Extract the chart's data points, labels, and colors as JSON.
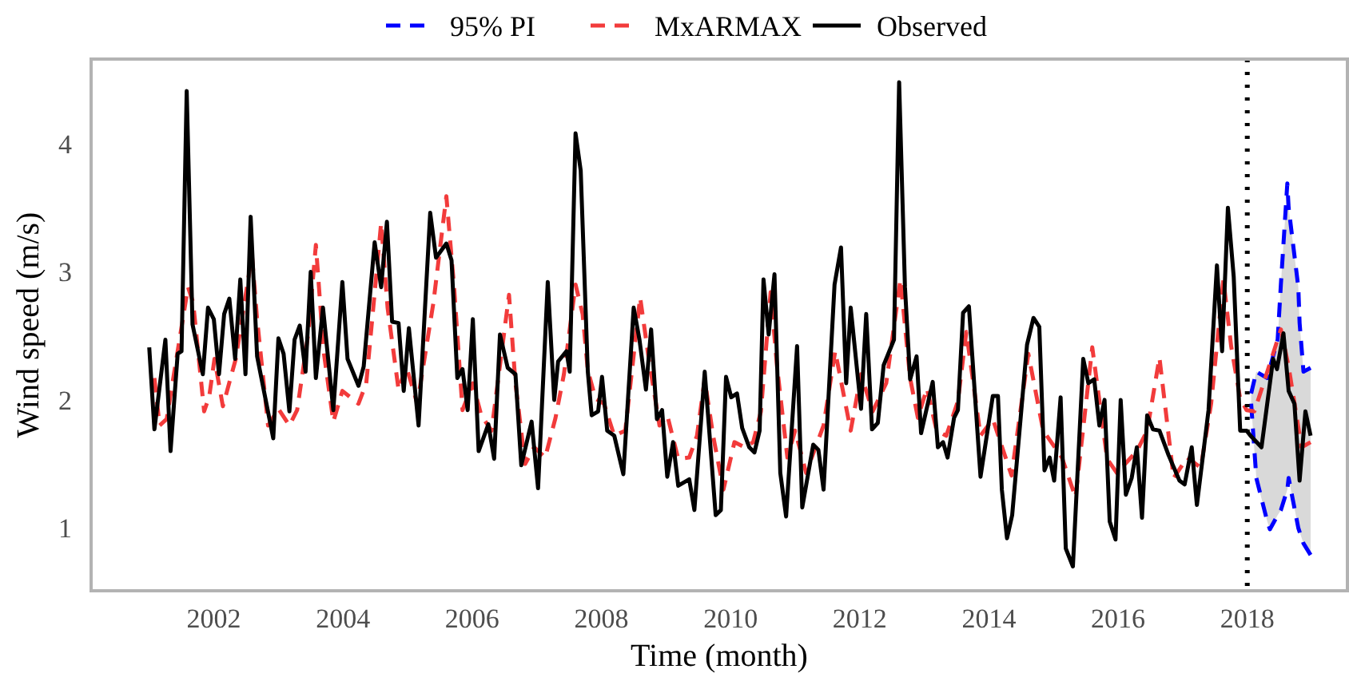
{
  "chart_data": {
    "type": "line",
    "xlabel": "Time (month)",
    "ylabel": "Wind speed (m/s)",
    "xlim": [
      2000.1,
      2019.55
    ],
    "ylim": [
      0.51,
      4.66
    ],
    "xticks": [
      2002,
      2004,
      2006,
      2008,
      2010,
      2012,
      2014,
      2016,
      2018
    ],
    "yticks": [
      1,
      2,
      3,
      4
    ],
    "legend": "top",
    "ref_lines": [
      {
        "axis": "x",
        "value": 2018,
        "color": "#000000",
        "line_style": "dotted"
      }
    ],
    "series": [
      {
        "name": "95% PI",
        "color": "#0000ff",
        "line_style": "dashed",
        "x": [
          2018.06,
          2018.14,
          2018.31,
          2018.35,
          2018.47,
          2018.52,
          2018.62,
          2018.64,
          2018.79,
          2018.81,
          2018.87,
          2018.98
        ],
        "values": [
          2.05,
          2.22,
          2.17,
          2.25,
          2.47,
          2.9,
          3.69,
          3.5,
          2.88,
          2.6,
          2.22,
          2.25
        ],
        "lower": [
          1.97,
          1.39,
          1.05,
          0.99,
          1.1,
          1.14,
          1.3,
          1.39,
          1.0,
          0.97,
          0.88,
          0.79
        ],
        "upper": [
          2.05,
          2.22,
          2.17,
          2.25,
          2.47,
          2.9,
          3.69,
          3.5,
          2.88,
          2.6,
          2.22,
          2.25
        ]
      },
      {
        "color": "#0000ff",
        "line_style": "dashed",
        "x": [
          2018.06,
          2018.14,
          2018.31,
          2018.35,
          2018.47,
          2018.52,
          2018.62,
          2018.64,
          2018.79,
          2018.81,
          2018.87,
          2018.98
        ],
        "values": [
          1.97,
          1.39,
          1.05,
          0.99,
          1.1,
          1.14,
          1.3,
          1.39,
          1.0,
          0.97,
          0.88,
          0.79
        ]
      },
      {
        "name": "MxARMAX",
        "color": "#f23b3b",
        "line_style": "dashed",
        "x": [
          2001.08,
          2001.16,
          2001.27,
          2001.6,
          2001.68,
          2001.85,
          2001.93,
          2002.01,
          2002.14,
          2002.34,
          2002.59,
          2002.67,
          2002.84,
          2003.0,
          2003.17,
          2003.29,
          2003.46,
          2003.58,
          2003.7,
          2003.85,
          2003.99,
          2004.24,
          2004.36,
          2004.59,
          2004.69,
          2004.86,
          2004.98,
          2005.15,
          2005.4,
          2005.6,
          2005.72,
          2005.85,
          2006.01,
          2006.14,
          2006.3,
          2006.57,
          2006.67,
          2006.82,
          2006.96,
          2007.13,
          2007.29,
          2007.42,
          2007.6,
          2007.71,
          2007.79,
          2007.91,
          2008.04,
          2008.2,
          2008.37,
          2008.6,
          2008.74,
          2008.9,
          2009.02,
          2009.19,
          2009.36,
          2009.48,
          2009.6,
          2009.73,
          2009.89,
          2010.06,
          2010.22,
          2010.35,
          2010.47,
          2010.62,
          2010.72,
          2010.88,
          2011.0,
          2011.17,
          2011.44,
          2011.62,
          2011.86,
          2012.02,
          2012.2,
          2012.41,
          2012.63,
          2012.78,
          2012.9,
          2013.04,
          2013.19,
          2013.34,
          2013.52,
          2013.65,
          2013.87,
          2014.06,
          2014.35,
          2014.61,
          2014.84,
          2015.13,
          2015.34,
          2015.6,
          2015.83,
          2015.98,
          2016.29,
          2016.45,
          2016.64,
          2016.86,
          2017.07,
          2017.28,
          2017.44,
          2017.63,
          2017.75,
          2017.89,
          2017.99,
          2018.11,
          2018.31,
          2018.52,
          2018.64,
          2018.84,
          2018.98
        ],
        "values": [
          2.17,
          1.8,
          1.85,
          2.88,
          2.76,
          1.91,
          2.03,
          2.32,
          1.95,
          2.32,
          3.13,
          2.63,
          1.8,
          1.93,
          1.8,
          1.92,
          2.51,
          3.21,
          2.38,
          1.83,
          2.07,
          1.97,
          2.13,
          3.38,
          2.72,
          2.08,
          2.26,
          1.97,
          2.76,
          3.59,
          2.88,
          1.92,
          2.13,
          1.88,
          1.76,
          2.82,
          2.13,
          1.5,
          1.63,
          1.55,
          1.86,
          2.2,
          2.9,
          2.67,
          2.23,
          2.01,
          1.97,
          1.72,
          1.76,
          2.8,
          2.3,
          1.8,
          1.88,
          1.54,
          1.55,
          1.72,
          2.16,
          1.72,
          1.3,
          1.67,
          1.63,
          1.67,
          1.91,
          2.84,
          2.26,
          1.55,
          1.76,
          1.43,
          1.8,
          2.38,
          1.76,
          2.2,
          1.91,
          2.13,
          2.94,
          2.17,
          1.86,
          2.09,
          1.76,
          1.72,
          1.99,
          2.53,
          1.72,
          1.85,
          1.41,
          2.36,
          1.76,
          1.55,
          1.24,
          2.41,
          1.54,
          1.43,
          1.6,
          1.76,
          2.33,
          1.39,
          1.55,
          1.47,
          1.97,
          2.94,
          2.42,
          2.01,
          1.92,
          1.91,
          2.22,
          2.55,
          2.26,
          1.63,
          1.67
        ]
      },
      {
        "name": "Observed",
        "color": "#000000",
        "line_style": "solid",
        "x": [
          2001.0,
          2001.08,
          2001.25,
          2001.33,
          2001.44,
          2001.5,
          2001.58,
          2001.67,
          2001.83,
          2001.91,
          2002.0,
          2002.08,
          2002.16,
          2002.24,
          2002.33,
          2002.41,
          2002.49,
          2002.57,
          2002.67,
          2002.92,
          2003.0,
          2003.08,
          2003.17,
          2003.25,
          2003.33,
          2003.42,
          2003.5,
          2003.58,
          2003.69,
          2003.85,
          2003.99,
          2004.07,
          2004.24,
          2004.32,
          2004.49,
          2004.59,
          2004.68,
          2004.76,
          2004.86,
          2004.94,
          2005.02,
          2005.17,
          2005.35,
          2005.44,
          2005.6,
          2005.68,
          2005.77,
          2005.85,
          2005.93,
          2006.01,
          2006.1,
          2006.25,
          2006.34,
          2006.43,
          2006.55,
          2006.67,
          2006.76,
          2006.92,
          2007.02,
          2007.17,
          2007.27,
          2007.33,
          2007.46,
          2007.51,
          2007.6,
          2007.68,
          2007.79,
          2007.85,
          2007.95,
          2008.01,
          2008.09,
          2008.2,
          2008.34,
          2008.5,
          2008.59,
          2008.69,
          2008.77,
          2008.86,
          2008.94,
          2009.02,
          2009.11,
          2009.19,
          2009.36,
          2009.44,
          2009.6,
          2009.77,
          2009.85,
          2009.93,
          2010.01,
          2010.1,
          2010.18,
          2010.29,
          2010.37,
          2010.45,
          2010.51,
          2010.59,
          2010.68,
          2010.77,
          2010.86,
          2011.03,
          2011.11,
          2011.28,
          2011.36,
          2011.44,
          2011.61,
          2011.71,
          2011.79,
          2011.86,
          2012.02,
          2012.1,
          2012.19,
          2012.28,
          2012.37,
          2012.53,
          2012.61,
          2012.7,
          2012.78,
          2012.88,
          2012.95,
          2013.13,
          2013.21,
          2013.29,
          2013.36,
          2013.46,
          2013.52,
          2013.6,
          2013.69,
          2013.87,
          2014.06,
          2014.14,
          2014.2,
          2014.28,
          2014.36,
          2014.59,
          2014.69,
          2014.78,
          2014.86,
          2014.94,
          2015.01,
          2015.11,
          2015.19,
          2015.3,
          2015.46,
          2015.54,
          2015.63,
          2015.71,
          2015.79,
          2015.87,
          2015.96,
          2016.04,
          2016.12,
          2016.21,
          2016.29,
          2016.37,
          2016.45,
          2016.54,
          2016.64,
          2016.78,
          2016.95,
          2017.03,
          2017.14,
          2017.22,
          2017.4,
          2017.53,
          2017.61,
          2017.7,
          2017.79,
          2017.89,
          2017.99,
          2018.05,
          2018.22,
          2018.4,
          2018.46,
          2018.56,
          2018.64,
          2018.73,
          2018.81,
          2018.9,
          2018.98
        ],
        "values": [
          2.41,
          1.77,
          2.47,
          1.6,
          2.36,
          2.38,
          4.41,
          2.59,
          2.2,
          2.72,
          2.63,
          2.2,
          2.67,
          2.79,
          2.32,
          2.94,
          2.2,
          3.43,
          2.34,
          1.7,
          2.48,
          2.36,
          1.91,
          2.47,
          2.58,
          2.22,
          3.0,
          2.17,
          2.72,
          1.92,
          2.92,
          2.32,
          2.11,
          2.26,
          3.23,
          2.88,
          3.39,
          2.61,
          2.6,
          2.07,
          2.56,
          1.8,
          3.46,
          3.11,
          3.22,
          3.09,
          2.17,
          2.24,
          1.92,
          2.63,
          1.6,
          1.81,
          1.54,
          2.51,
          2.25,
          2.2,
          1.49,
          1.83,
          1.31,
          2.92,
          2.0,
          2.3,
          2.38,
          2.22,
          4.08,
          3.79,
          2.22,
          1.88,
          1.91,
          2.18,
          1.76,
          1.72,
          1.42,
          2.72,
          2.47,
          2.08,
          2.55,
          1.85,
          1.92,
          1.4,
          1.67,
          1.33,
          1.38,
          1.14,
          2.22,
          1.1,
          1.14,
          2.18,
          2.02,
          2.05,
          1.78,
          1.63,
          1.59,
          1.76,
          2.94,
          2.51,
          2.98,
          1.43,
          1.09,
          2.42,
          1.16,
          1.65,
          1.61,
          1.3,
          2.9,
          3.19,
          2.13,
          2.72,
          1.93,
          2.67,
          1.77,
          1.82,
          2.27,
          2.47,
          4.48,
          2.88,
          2.16,
          2.34,
          1.74,
          2.14,
          1.63,
          1.67,
          1.55,
          1.86,
          1.92,
          2.68,
          2.73,
          1.4,
          2.03,
          2.03,
          1.3,
          0.92,
          1.1,
          2.43,
          2.64,
          2.57,
          1.45,
          1.55,
          1.37,
          2.02,
          0.84,
          0.7,
          2.32,
          2.13,
          2.16,
          1.8,
          2.0,
          1.05,
          0.91,
          2.0,
          1.26,
          1.39,
          1.63,
          1.08,
          1.88,
          1.77,
          1.76,
          1.57,
          1.37,
          1.34,
          1.63,
          1.18,
          1.92,
          3.05,
          2.38,
          3.5,
          2.96,
          1.76,
          1.76,
          1.72,
          1.63,
          2.32,
          2.24,
          2.52,
          2.07,
          1.97,
          1.37,
          1.91,
          1.72
        ]
      }
    ]
  }
}
